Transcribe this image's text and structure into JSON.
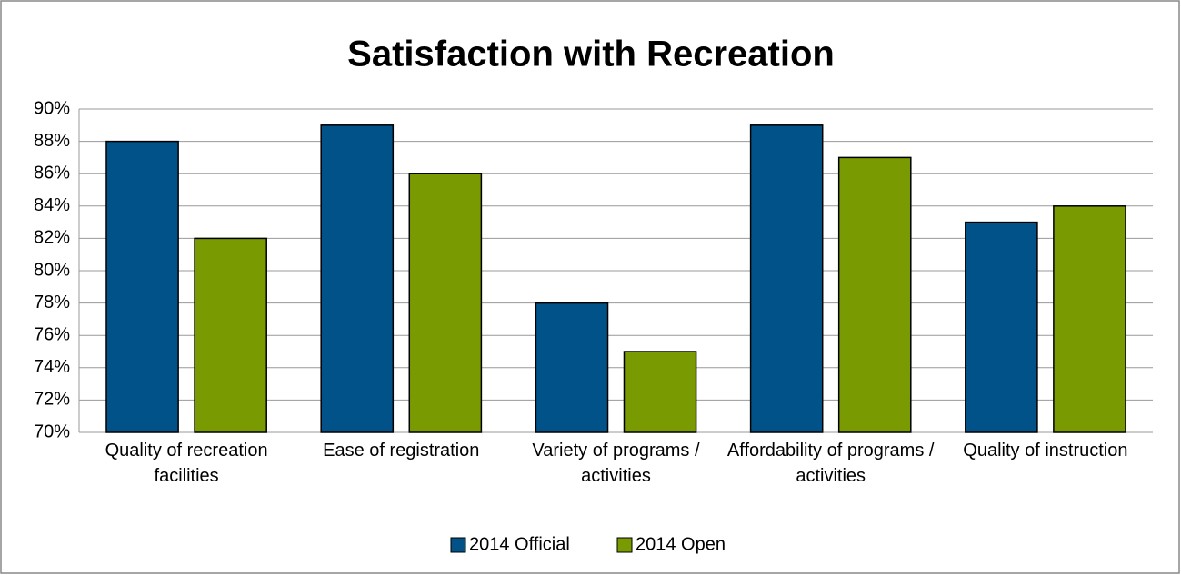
{
  "chart_data": {
    "type": "bar",
    "title": "Satisfaction with Recreation",
    "categories": [
      "Quality of recreation facilities",
      "Ease of registration",
      "Variety of programs / activities",
      "Affordability of programs / activities",
      "Quality of instruction"
    ],
    "series": [
      {
        "name": "2014 Official",
        "color": "#005288",
        "values": [
          88,
          89,
          78,
          89,
          83
        ]
      },
      {
        "name": "2014 Open",
        "color": "#7a9a01",
        "values": [
          82,
          86,
          75,
          87,
          84
        ]
      }
    ],
    "ylim": [
      70,
      90
    ],
    "yticks": [
      {
        "value": 70,
        "label": "70%"
      },
      {
        "value": 72,
        "label": "72%"
      },
      {
        "value": 74,
        "label": "74%"
      },
      {
        "value": 76,
        "label": "76%"
      },
      {
        "value": 78,
        "label": "78%"
      },
      {
        "value": 80,
        "label": "80%"
      },
      {
        "value": 82,
        "label": "82%"
      },
      {
        "value": 84,
        "label": "84%"
      },
      {
        "value": 86,
        "label": "86%"
      },
      {
        "value": 88,
        "label": "88%"
      },
      {
        "value": 90,
        "label": "90%"
      }
    ],
    "grid": true,
    "legend": "bottom"
  }
}
